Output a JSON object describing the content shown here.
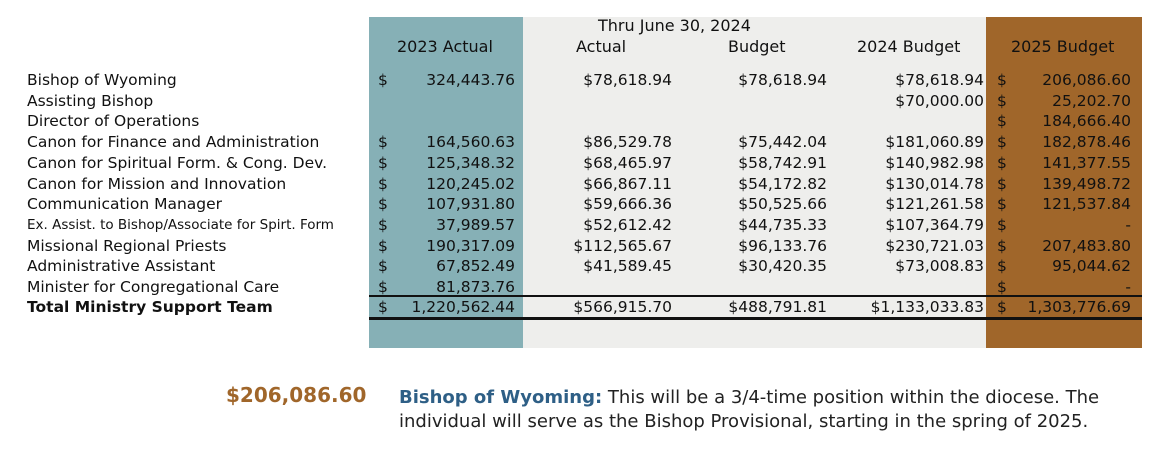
{
  "headers": {
    "thru": "Thru June 30, 2024",
    "col_2023": "2023 Actual",
    "col_actual": "Actual",
    "col_budget": "Budget",
    "col_2024": "2024 Budget",
    "col_2025": "2025 Budget"
  },
  "dollar_sign": "$",
  "rows": [
    {
      "label": "Bishop of Wyoming",
      "a2023": "324,443.76",
      "actual": "$78,618.94",
      "budget": "$78,618.94",
      "b2024": "$78,618.94",
      "b2025": "206,086.60"
    },
    {
      "label": "Assisting Bishop",
      "a2023": "",
      "actual": "",
      "budget": "",
      "b2024": "$70,000.00",
      "b2025": "25,202.70"
    },
    {
      "label": "Director of Operations",
      "a2023": "",
      "actual": "",
      "budget": "",
      "b2024": "",
      "b2025": "184,666.40"
    },
    {
      "label": "Canon for Finance and Administration",
      "a2023": "164,560.63",
      "actual": "$86,529.78",
      "budget": "$75,442.04",
      "b2024": "$181,060.89",
      "b2025": "182,878.46"
    },
    {
      "label": "Canon for Spiritual Form. & Cong. Dev.",
      "a2023": "125,348.32",
      "actual": "$68,465.97",
      "budget": "$58,742.91",
      "b2024": "$140,982.98",
      "b2025": "141,377.55"
    },
    {
      "label": "Canon for Mission and Innovation",
      "a2023": "120,245.02",
      "actual": "$66,867.11",
      "budget": "$54,172.82",
      "b2024": "$130,014.78",
      "b2025": "139,498.72"
    },
    {
      "label": "Communication Manager",
      "a2023": "107,931.80",
      "actual": "$59,666.36",
      "budget": "$50,525.66",
      "b2024": "$121,261.58",
      "b2025": "121,537.84"
    },
    {
      "label": "Ex. Assist. to Bishop/Associate for Spirt. Form",
      "a2023": "37,989.57",
      "actual": "$52,612.42",
      "budget": "$44,735.33",
      "b2024": "$107,364.79",
      "b2025": "-"
    },
    {
      "label": "Missional Regional Priests",
      "a2023": "190,317.09",
      "actual": "$112,565.67",
      "budget": "$96,133.76",
      "b2024": "$230,721.03",
      "b2025": "207,483.80"
    },
    {
      "label": "Administrative Assistant",
      "a2023": "67,852.49",
      "actual": "$41,589.45",
      "budget": "$30,420.35",
      "b2024": "$73,008.83",
      "b2025": "95,044.62"
    },
    {
      "label": "Minister for Congregational Care",
      "a2023": "81,873.76",
      "actual": "",
      "budget": "",
      "b2024": "",
      "b2025": "-"
    }
  ],
  "total": {
    "label": "Total Ministry Support Team",
    "a2023": "1,220,562.44",
    "actual": "$566,915.70",
    "budget": "$488,791.81",
    "b2024": "$1,133,033.83",
    "b2025": "1,303,776.69"
  },
  "note": {
    "amount": "$206,086.60",
    "title": "Bishop of Wyoming:",
    "text": " This will be a 3/4-time position within the diocese. The individual will serve as the Bishop Provisional, starting in the spring of 2025."
  },
  "colors": {
    "col_2023": "#86b0b6",
    "col_2025": "#a0662a",
    "middle": "#eeeeec",
    "note_title": "#2e5f86"
  }
}
